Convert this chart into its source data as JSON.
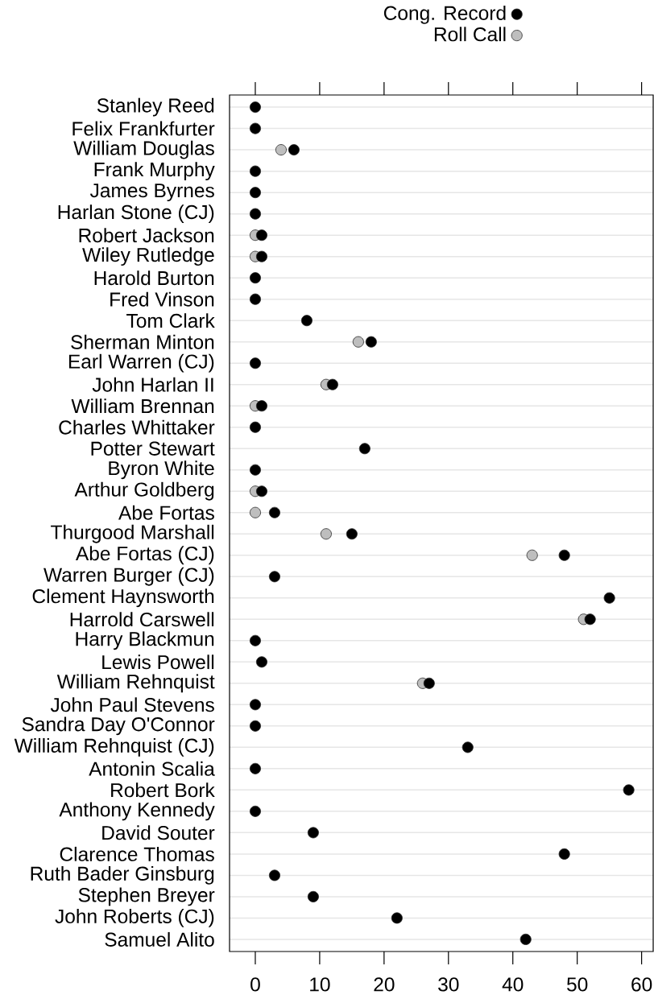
{
  "chart_data": {
    "type": "scatter",
    "orientation": "horizontal",
    "categories": [
      "Stanley Reed",
      "Felix Frankfurter",
      "William Douglas",
      "Frank Murphy",
      "James Byrnes",
      "Harlan Stone (CJ)",
      "Robert Jackson",
      "Wiley Rutledge",
      "Harold Burton",
      "Fred Vinson",
      "Tom Clark",
      "Sherman Minton",
      "Earl Warren (CJ)",
      "John Harlan II",
      "William Brennan",
      "Charles Whittaker",
      "Potter Stewart",
      "Byron White",
      "Arthur Goldberg",
      "Abe Fortas",
      "Thurgood Marshall",
      "Abe Fortas (CJ)",
      "Warren Burger (CJ)",
      "Clement Haynsworth",
      "Harrold Carswell",
      "Harry Blackmun",
      "Lewis Powell",
      "William Rehnquist",
      "John Paul Stevens",
      "Sandra Day O'Connor",
      "William Rehnquist (CJ)",
      "Antonin Scalia",
      "Robert Bork",
      "Anthony Kennedy",
      "David Souter",
      "Clarence Thomas",
      "Ruth Bader Ginsburg",
      "Stephen Breyer",
      "John Roberts (CJ)",
      "Samuel Alito"
    ],
    "series": [
      {
        "name": "Cong. Record",
        "color": "#000000",
        "values": [
          0,
          0,
          6,
          0,
          0,
          0,
          1,
          1,
          0,
          0,
          8,
          18,
          0,
          12,
          1,
          0,
          17,
          0,
          1,
          3,
          15,
          48,
          3,
          55,
          52,
          0,
          1,
          27,
          0,
          0,
          33,
          0,
          58,
          0,
          9,
          48,
          3,
          9,
          22,
          42
        ]
      },
      {
        "name": "Roll Call",
        "color": "#bebebe",
        "values": [
          null,
          null,
          4,
          null,
          null,
          null,
          0,
          0,
          null,
          null,
          null,
          16,
          null,
          11,
          0,
          null,
          null,
          null,
          0,
          0,
          11,
          43,
          null,
          null,
          51,
          null,
          null,
          26,
          null,
          null,
          null,
          null,
          null,
          null,
          null,
          null,
          null,
          null,
          null,
          null
        ]
      }
    ],
    "xlim": [
      -4,
      61.8
    ],
    "xticks": [
      0,
      10,
      20,
      30,
      40,
      50,
      60
    ],
    "grid": "y",
    "legend": "top",
    "marker": "circle"
  }
}
